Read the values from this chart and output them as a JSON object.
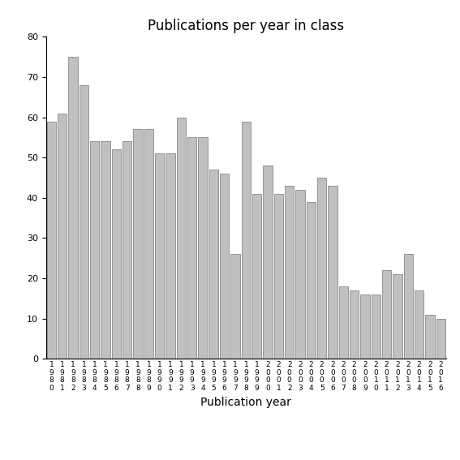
{
  "title": "Publications per year in class",
  "xlabel": "Publication year",
  "years": [
    "1980",
    "1981",
    "1982",
    "1983",
    "1984",
    "1985",
    "1986",
    "1987",
    "1988",
    "1989",
    "1990",
    "1991",
    "1992",
    "1993",
    "1994",
    "1995",
    "1996",
    "1997",
    "1998",
    "1999",
    "2000",
    "2001",
    "2002",
    "2003",
    "2004",
    "2005",
    "2006",
    "2007",
    "2008",
    "2009",
    "2010",
    "2011",
    "2012",
    "2013",
    "2014",
    "2015",
    "2016"
  ],
  "values": [
    59,
    61,
    75,
    68,
    54,
    54,
    52,
    54,
    57,
    57,
    51,
    51,
    60,
    55,
    55,
    47,
    46,
    26,
    59,
    41,
    48,
    41,
    43,
    42,
    39,
    45,
    43,
    18,
    17,
    16,
    16,
    22,
    21,
    26,
    17,
    11,
    10
  ],
  "bar_color": "#c0c0c0",
  "bar_edgecolor": "#888888",
  "ylim": [
    0,
    80
  ],
  "yticks": [
    0,
    10,
    20,
    30,
    40,
    50,
    60,
    70,
    80
  ],
  "background_color": "#ffffff",
  "title_fontsize": 12,
  "axis_label_fontsize": 10,
  "tick_fontsize": 8,
  "ylabel_fontsize": 10
}
